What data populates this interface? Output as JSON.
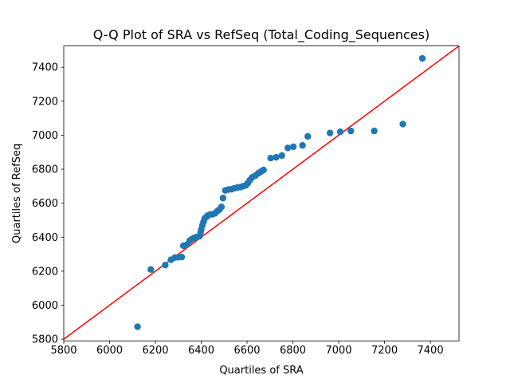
{
  "chart_data": {
    "type": "scatter",
    "title": "Q-Q Plot of SRA vs RefSeq (Total_Coding_Sequences)",
    "xlabel": "Quartiles of SRA",
    "ylabel": "Quartiles of RefSeq",
    "xlim": [
      5800,
      7525
    ],
    "ylim": [
      5790,
      7525
    ],
    "xticks": [
      5800,
      6000,
      6200,
      6400,
      6600,
      6800,
      7000,
      7200,
      7400
    ],
    "yticks": [
      5800,
      6000,
      6200,
      6400,
      6600,
      6800,
      7000,
      7200,
      7400
    ],
    "grid": false,
    "legend": "none",
    "point_color": "#1f77b4",
    "line_color": "#ff0000",
    "reference_line": "y = x",
    "points": [
      [
        6122,
        5873
      ],
      [
        6180,
        6210
      ],
      [
        6243,
        6236
      ],
      [
        6268,
        6267
      ],
      [
        6285,
        6280
      ],
      [
        6300,
        6282
      ],
      [
        6315,
        6283
      ],
      [
        6322,
        6350
      ],
      [
        6338,
        6356
      ],
      [
        6350,
        6380
      ],
      [
        6358,
        6388
      ],
      [
        6368,
        6395
      ],
      [
        6378,
        6400
      ],
      [
        6392,
        6405
      ],
      [
        6397,
        6427
      ],
      [
        6400,
        6445
      ],
      [
        6405,
        6470
      ],
      [
        6410,
        6490
      ],
      [
        6415,
        6510
      ],
      [
        6422,
        6518
      ],
      [
        6428,
        6527
      ],
      [
        6438,
        6533
      ],
      [
        6450,
        6535
      ],
      [
        6460,
        6540
      ],
      [
        6470,
        6553
      ],
      [
        6480,
        6563
      ],
      [
        6488,
        6578
      ],
      [
        6495,
        6630
      ],
      [
        6505,
        6675
      ],
      [
        6518,
        6680
      ],
      [
        6532,
        6682
      ],
      [
        6545,
        6688
      ],
      [
        6558,
        6692
      ],
      [
        6572,
        6695
      ],
      [
        6583,
        6700
      ],
      [
        6595,
        6705
      ],
      [
        6603,
        6718
      ],
      [
        6612,
        6735
      ],
      [
        6622,
        6752
      ],
      [
        6636,
        6762
      ],
      [
        6648,
        6775
      ],
      [
        6660,
        6785
      ],
      [
        6672,
        6795
      ],
      [
        6703,
        6865
      ],
      [
        6727,
        6870
      ],
      [
        6752,
        6880
      ],
      [
        6778,
        6925
      ],
      [
        6802,
        6932
      ],
      [
        6842,
        6940
      ],
      [
        6865,
        6993
      ],
      [
        6962,
        7013
      ],
      [
        7007,
        7020
      ],
      [
        7053,
        7025
      ],
      [
        7155,
        7025
      ],
      [
        7280,
        7065
      ],
      [
        7365,
        7452
      ]
    ]
  }
}
